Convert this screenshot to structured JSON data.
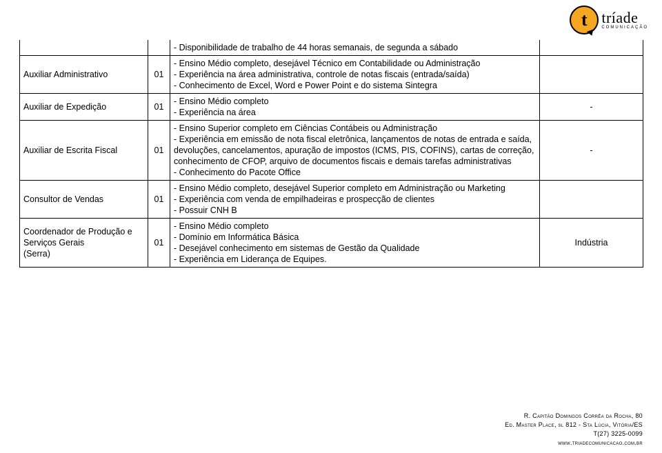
{
  "logo": {
    "letter": "t",
    "word": "tríade",
    "subtitle": "COMUNICAÇÃO"
  },
  "table": {
    "rows": [
      {
        "job": "",
        "qty": "",
        "desc": "- Disponibilidade de trabalho de 44 horas semanais, de segunda a sábado",
        "ind": ""
      },
      {
        "job": "Auxiliar Administrativo",
        "qty": "01",
        "desc": "- Ensino Médio completo, desejável Técnico em Contabilidade ou Administração\n- Experiência na área administrativa, controle de notas fiscais (entrada/saída)\n- Conhecimento de Excel, Word e Power Point e do sistema Sintegra",
        "ind": ""
      },
      {
        "job": "Auxiliar de Expedição",
        "qty": "01",
        "desc": "- Ensino Médio completo\n- Experiência na área",
        "ind": "-"
      },
      {
        "job": "Auxiliar de Escrita Fiscal",
        "qty": "01",
        "desc": "- Ensino Superior completo em Ciências Contábeis ou Administração\n- Experiência em emissão de nota fiscal eletrônica, lançamentos de notas de entrada e saída, devoluções, cancelamentos, apuração de impostos (ICMS, PIS, COFINS), cartas de correção, conhecimento de CFOP, arquivo de documentos fiscais e demais tarefas administrativas\n- Conhecimento do Pacote Office",
        "ind": "-"
      },
      {
        "job": "Consultor de Vendas",
        "qty": "01",
        "desc": "- Ensino Médio completo, desejável Superior completo em Administração ou Marketing\n- Experiência com venda de empilhadeiras e prospecção de clientes\n- Possuir CNH B",
        "ind": ""
      },
      {
        "job": "Coordenador de Produção e Serviços Gerais\n(Serra)",
        "qty": "01",
        "desc": "- Ensino Médio completo\n- Domínio em Informática Básica\n- Desejável conhecimento em sistemas de Gestão da Qualidade\n- Experiência em Liderança de Equipes.",
        "ind": "Indústria"
      }
    ]
  },
  "footer": {
    "line1": "R. Capitão Domingos Corrêa da Rocha, 80",
    "line2": "Ed. Master Place, sl 812 - Sta Lúcia, Vitória/ES",
    "line3": "T(27) 3225-0099",
    "line4": "www.triadecomunicacao.com.br"
  },
  "colors": {
    "accent": "#f5a623",
    "text": "#000000",
    "border": "#000000",
    "background": "#ffffff"
  }
}
